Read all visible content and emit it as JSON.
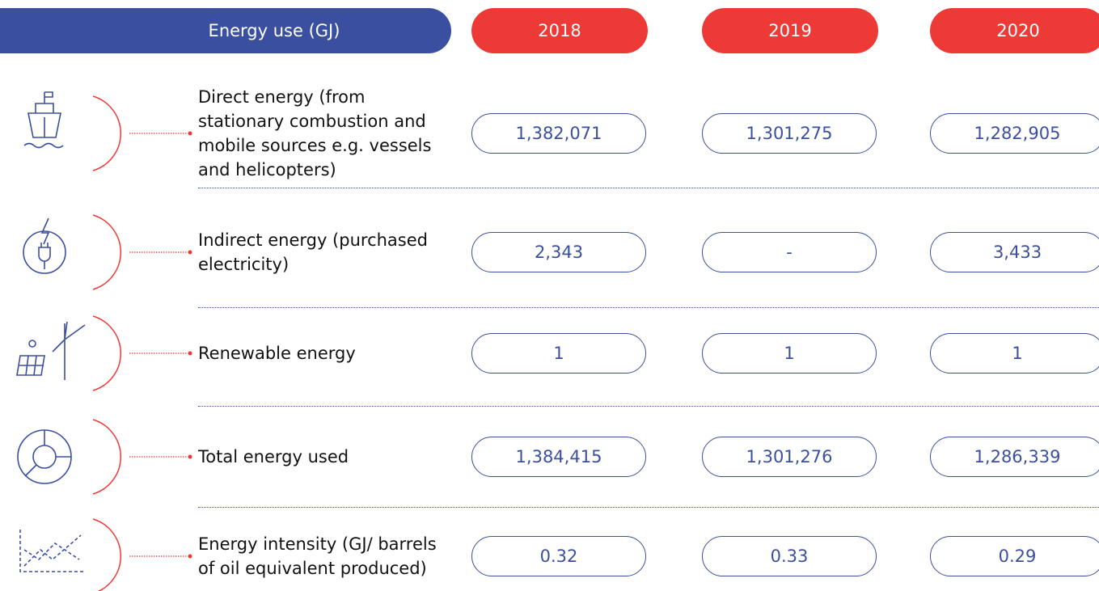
{
  "header": {
    "title": "Energy use (GJ)",
    "years": [
      "2018",
      "2019",
      "2020"
    ]
  },
  "table": {
    "rows": [
      {
        "label": "Direct energy (from stationary combustion and mobile sources e.g. vessels and helicopters)",
        "values": [
          "1,382,071",
          "1,301,275",
          "1,282,905"
        ]
      },
      {
        "label": "Indirect energy (purchased electricity)",
        "values": [
          "2,343",
          "-",
          "3,433"
        ]
      },
      {
        "label": "Renewable energy",
        "values": [
          "1",
          "1",
          "1"
        ]
      },
      {
        "label": "Total energy used",
        "values": [
          "1,384,415",
          "1,301,276",
          "1,286,339"
        ]
      },
      {
        "label": "Energy intensity (GJ/ barrels of oil equivalent produced)",
        "values": [
          "0.32",
          "0.33",
          "0.29"
        ]
      }
    ]
  }
}
